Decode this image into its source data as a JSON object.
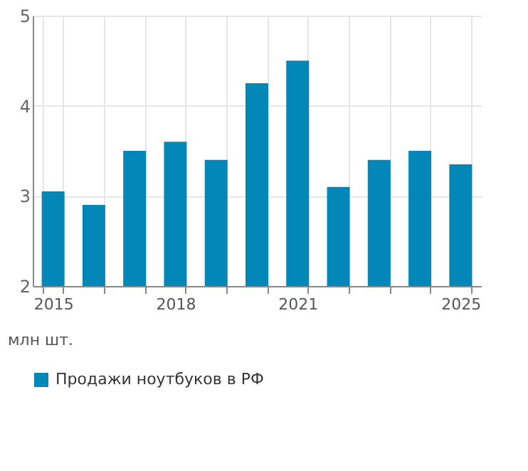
{
  "chart_data": {
    "type": "bar",
    "categories": [
      "2015",
      null,
      null,
      "2018",
      null,
      null,
      "2021",
      null,
      null,
      null,
      "2025"
    ],
    "series": [
      {
        "name": "Продажи ноутбуков в РФ",
        "color": "#0287b8",
        "values": [
          3.05,
          2.9,
          3.5,
          3.6,
          3.4,
          4.25,
          4.5,
          3.1,
          3.4,
          3.5,
          3.35
        ]
      }
    ],
    "ylabel": "млн шт.",
    "ylim": [
      2,
      5
    ],
    "yticks": [
      2,
      3,
      4,
      5
    ],
    "grid": true,
    "legend": "bottom"
  }
}
